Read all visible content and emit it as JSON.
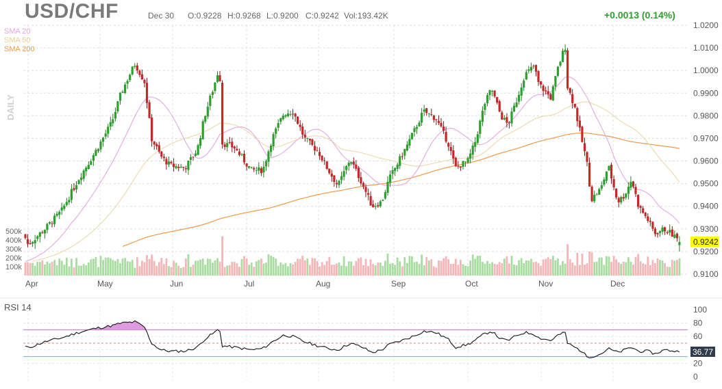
{
  "header": {
    "title": "USD/CHF",
    "date": "Dec 30",
    "open": "O:0.9228",
    "high": "H:0.9268",
    "low": "L:0.9200",
    "close": "C:0.9242",
    "volume": "Vol:193.42K",
    "change": "+0.0013 (0.14%)"
  },
  "legend": {
    "sma20": "SMA 20",
    "sma50": "SMA 50",
    "sma200": "SMA 200",
    "timeframe": "DAILY"
  },
  "colors": {
    "up": "#2ca02c",
    "down": "#c62828",
    "up_volume": "#a8dca0",
    "down_volume": "#f4b6b6",
    "sma20": "#e3a8e0",
    "sma50": "#ecd9a8",
    "sma200": "#f09a45",
    "rsi_line": "#222222",
    "rsi_fill": "#d98ad9",
    "rsi_upper": "#c070c0",
    "rsi_lower": "#5fb4d8",
    "last_price_bg": "#ffff00",
    "rsi_value_bg": "#333a4a"
  },
  "chart_data": [
    {
      "type": "candlestick",
      "title": "USD/CHF",
      "timeframe": "DAILY",
      "x_ticks": [
        "Apr",
        "May",
        "Jun",
        "Jul",
        "Aug",
        "Sep",
        "Oct",
        "Nov",
        "Dec"
      ],
      "y_ticks": [
        "1.0200",
        "1.0100",
        "1.0000",
        "0.9900",
        "0.9800",
        "0.9700",
        "0.9600",
        "0.9500",
        "0.9400",
        "0.9300",
        "0.9200",
        "0.9100"
      ],
      "ylim": [
        0.91,
        1.02
      ],
      "volume_ticks": [
        "500k",
        "400k",
        "300k",
        "200k",
        "100k"
      ],
      "last_price": "0.9242",
      "anchors": [
        {
          "date": "Mar 28",
          "close": 0.926
        },
        {
          "date": "Apr 1",
          "close": 0.923
        },
        {
          "date": "Apr 8",
          "close": 0.93
        },
        {
          "date": "Apr 15",
          "close": 0.938
        },
        {
          "date": "Apr 22",
          "close": 0.952
        },
        {
          "date": "Apr 29",
          "close": 0.964
        },
        {
          "date": "May 6",
          "close": 0.977
        },
        {
          "date": "May 10",
          "close": 0.99
        },
        {
          "date": "May 14",
          "close": 0.999
        },
        {
          "date": "May 16",
          "close": 1.003
        },
        {
          "date": "May 20",
          "close": 0.995
        },
        {
          "date": "May 23",
          "close": 0.97
        },
        {
          "date": "May 27",
          "close": 0.962
        },
        {
          "date": "May 31",
          "close": 0.958
        },
        {
          "date": "Jun 6",
          "close": 0.957
        },
        {
          "date": "Jun 11",
          "close": 0.965
        },
        {
          "date": "Jun 14",
          "close": 0.98
        },
        {
          "date": "Jun 18",
          "close": 0.994
        },
        {
          "date": "Jun 20",
          "close": 1.002
        },
        {
          "date": "Jun 21",
          "close": 0.968
        },
        {
          "date": "Jun 26",
          "close": 0.966
        },
        {
          "date": "Jul 3",
          "close": 0.956
        },
        {
          "date": "Jul 8",
          "close": 0.956
        },
        {
          "date": "Jul 12",
          "close": 0.97
        },
        {
          "date": "Jul 17",
          "close": 0.981
        },
        {
          "date": "Jul 21",
          "close": 0.982
        },
        {
          "date": "Jul 26",
          "close": 0.97
        },
        {
          "date": "Aug 1",
          "close": 0.964
        },
        {
          "date": "Aug 5",
          "close": 0.956
        },
        {
          "date": "Aug 9",
          "close": 0.949
        },
        {
          "date": "Aug 14",
          "close": 0.961
        },
        {
          "date": "Aug 19",
          "close": 0.95
        },
        {
          "date": "Aug 23",
          "close": 0.94
        },
        {
          "date": "Aug 27",
          "close": 0.942
        },
        {
          "date": "Aug 30",
          "close": 0.952
        },
        {
          "date": "Sep 5",
          "close": 0.964
        },
        {
          "date": "Sep 10",
          "close": 0.975
        },
        {
          "date": "Sep 13",
          "close": 0.982
        },
        {
          "date": "Sep 18",
          "close": 0.979
        },
        {
          "date": "Sep 23",
          "close": 0.968
        },
        {
          "date": "Sep 26",
          "close": 0.957
        },
        {
          "date": "Oct 1",
          "close": 0.96
        },
        {
          "date": "Oct 4",
          "close": 0.968
        },
        {
          "date": "Oct 8",
          "close": 0.985
        },
        {
          "date": "Oct 11",
          "close": 0.992
        },
        {
          "date": "Oct 15",
          "close": 0.98
        },
        {
          "date": "Oct 18",
          "close": 0.976
        },
        {
          "date": "Oct 22",
          "close": 0.988
        },
        {
          "date": "Oct 25",
          "close": 0.998
        },
        {
          "date": "Oct 29",
          "close": 1.002
        },
        {
          "date": "Oct 31",
          "close": 0.994
        },
        {
          "date": "Nov 5",
          "close": 0.988
        },
        {
          "date": "Nov 8",
          "close": 1.001
        },
        {
          "date": "Nov 11",
          "close": 1.011
        },
        {
          "date": "Nov 12",
          "close": 0.993
        },
        {
          "date": "Nov 15",
          "close": 0.984
        },
        {
          "date": "Nov 18",
          "close": 0.969
        },
        {
          "date": "Nov 20",
          "close": 0.96
        },
        {
          "date": "Nov 22",
          "close": 0.943
        },
        {
          "date": "Nov 26",
          "close": 0.948
        },
        {
          "date": "Nov 29",
          "close": 0.958
        },
        {
          "date": "Dec 3",
          "close": 0.942
        },
        {
          "date": "Dec 6",
          "close": 0.945
        },
        {
          "date": "Dec 9",
          "close": 0.952
        },
        {
          "date": "Dec 12",
          "close": 0.94
        },
        {
          "date": "Dec 16",
          "close": 0.934
        },
        {
          "date": "Dec 19",
          "close": 0.928
        },
        {
          "date": "Dec 23",
          "close": 0.93
        },
        {
          "date": "Dec 26",
          "close": 0.928
        },
        {
          "date": "Dec 30",
          "close": 0.9242
        }
      ]
    },
    {
      "type": "line",
      "title": "RSI 14",
      "y_ticks": [
        "100",
        "80",
        "60",
        "40",
        "20",
        "0"
      ],
      "ylim": [
        0,
        100
      ],
      "overbought": 70,
      "oversold": 30,
      "last_value": "36.77",
      "anchors": [
        {
          "date": "Mar 28",
          "value": 45
        },
        {
          "date": "Apr 1",
          "value": 43
        },
        {
          "date": "Apr 8",
          "value": 52
        },
        {
          "date": "Apr 15",
          "value": 58
        },
        {
          "date": "Apr 22",
          "value": 66
        },
        {
          "date": "Apr 29",
          "value": 72
        },
        {
          "date": "May 6",
          "value": 76
        },
        {
          "date": "May 10",
          "value": 80
        },
        {
          "date": "May 14",
          "value": 81
        },
        {
          "date": "May 16",
          "value": 82
        },
        {
          "date": "May 20",
          "value": 74
        },
        {
          "date": "May 23",
          "value": 50
        },
        {
          "date": "May 27",
          "value": 40
        },
        {
          "date": "May 31",
          "value": 38
        },
        {
          "date": "Jun 6",
          "value": 38
        },
        {
          "date": "Jun 11",
          "value": 44
        },
        {
          "date": "Jun 14",
          "value": 56
        },
        {
          "date": "Jun 18",
          "value": 66
        },
        {
          "date": "Jun 20",
          "value": 72
        },
        {
          "date": "Jun 21",
          "value": 46
        },
        {
          "date": "Jun 26",
          "value": 44
        },
        {
          "date": "Jul 3",
          "value": 40
        },
        {
          "date": "Jul 8",
          "value": 42
        },
        {
          "date": "Jul 12",
          "value": 52
        },
        {
          "date": "Jul 17",
          "value": 62
        },
        {
          "date": "Jul 21",
          "value": 60
        },
        {
          "date": "Jul 26",
          "value": 52
        },
        {
          "date": "Aug 1",
          "value": 46
        },
        {
          "date": "Aug 5",
          "value": 42
        },
        {
          "date": "Aug 9",
          "value": 40
        },
        {
          "date": "Aug 14",
          "value": 50
        },
        {
          "date": "Aug 19",
          "value": 44
        },
        {
          "date": "Aug 23",
          "value": 36
        },
        {
          "date": "Aug 27",
          "value": 40
        },
        {
          "date": "Aug 30",
          "value": 48
        },
        {
          "date": "Sep 5",
          "value": 55
        },
        {
          "date": "Sep 10",
          "value": 62
        },
        {
          "date": "Sep 13",
          "value": 68
        },
        {
          "date": "Sep 18",
          "value": 66
        },
        {
          "date": "Sep 23",
          "value": 56
        },
        {
          "date": "Sep 26",
          "value": 44
        },
        {
          "date": "Oct 1",
          "value": 48
        },
        {
          "date": "Oct 4",
          "value": 54
        },
        {
          "date": "Oct 8",
          "value": 64
        },
        {
          "date": "Oct 11",
          "value": 68
        },
        {
          "date": "Oct 15",
          "value": 56
        },
        {
          "date": "Oct 18",
          "value": 54
        },
        {
          "date": "Oct 22",
          "value": 62
        },
        {
          "date": "Oct 25",
          "value": 66
        },
        {
          "date": "Oct 29",
          "value": 64
        },
        {
          "date": "Oct 31",
          "value": 58
        },
        {
          "date": "Nov 5",
          "value": 54
        },
        {
          "date": "Nov 8",
          "value": 62
        },
        {
          "date": "Nov 11",
          "value": 66
        },
        {
          "date": "Nov 12",
          "value": 50
        },
        {
          "date": "Nov 15",
          "value": 44
        },
        {
          "date": "Nov 18",
          "value": 38
        },
        {
          "date": "Nov 20",
          "value": 30
        },
        {
          "date": "Nov 22",
          "value": 30
        },
        {
          "date": "Nov 26",
          "value": 34
        },
        {
          "date": "Nov 29",
          "value": 42
        },
        {
          "date": "Dec 3",
          "value": 36
        },
        {
          "date": "Dec 6",
          "value": 40
        },
        {
          "date": "Dec 9",
          "value": 44
        },
        {
          "date": "Dec 12",
          "value": 38
        },
        {
          "date": "Dec 16",
          "value": 38
        },
        {
          "date": "Dec 19",
          "value": 34
        },
        {
          "date": "Dec 23",
          "value": 40
        },
        {
          "date": "Dec 26",
          "value": 39
        },
        {
          "date": "Dec 30",
          "value": 36.77
        }
      ]
    }
  ]
}
